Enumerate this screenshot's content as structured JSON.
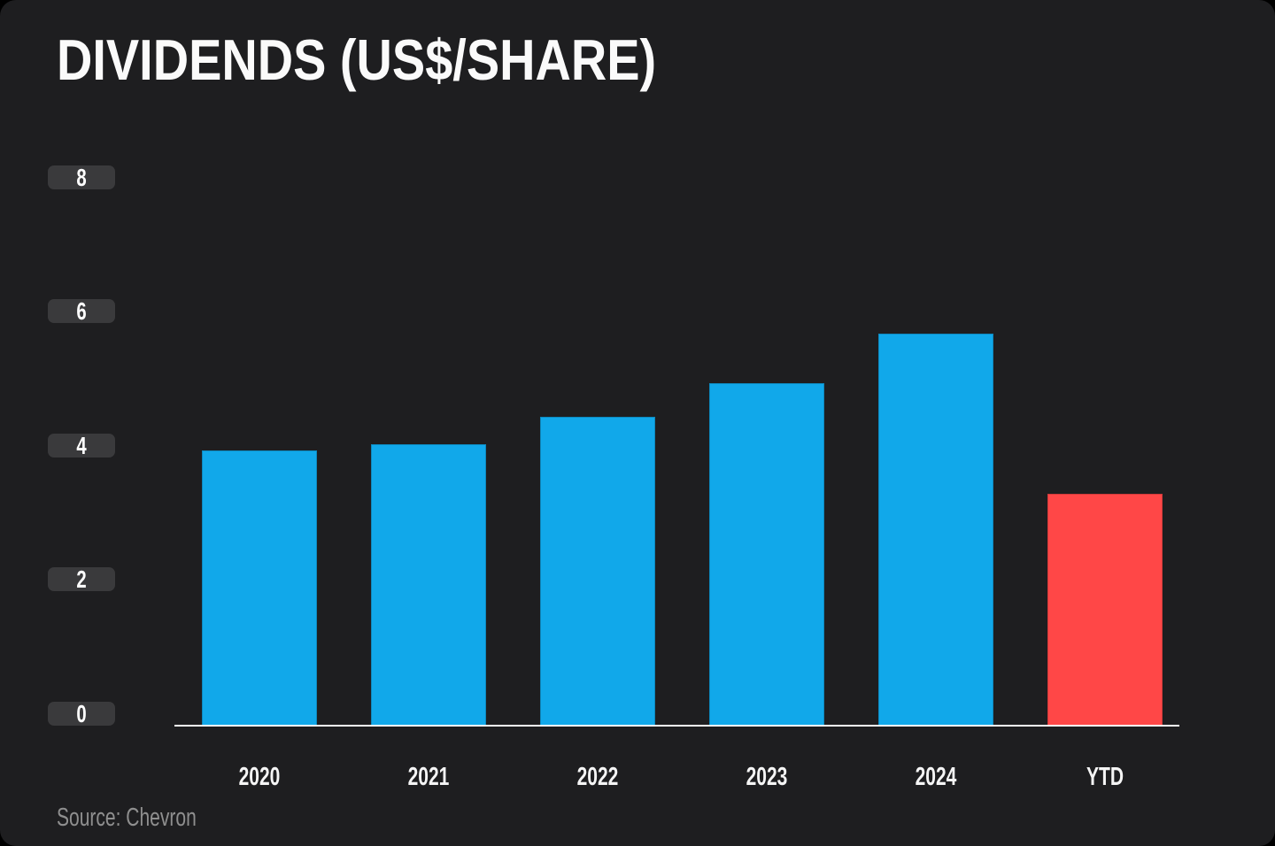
{
  "header": {
    "title": "DIVIDENDS (US$/SHARE)"
  },
  "footer": {
    "source": "Source: Chevron"
  },
  "colors": {
    "background": "#000000",
    "panel": "#1E1E20",
    "bar_blue": "#11A8EA",
    "bar_red": "#FF4747",
    "axis_line": "#FFFFFF",
    "tick_pill": "#3A3A3C",
    "text_primary": "#FFFFFF",
    "text_muted": "#8F8F8F"
  },
  "chart_data": {
    "type": "bar",
    "title": "DIVIDENDS (US$/SHARE)",
    "categories": [
      "2020",
      "2021",
      "2022",
      "2023",
      "2024",
      "YTD"
    ],
    "values": [
      4.1,
      4.2,
      4.6,
      5.1,
      5.85,
      3.45
    ],
    "bar_colors": [
      "#11A8EA",
      "#11A8EA",
      "#11A8EA",
      "#11A8EA",
      "#11A8EA",
      "#FF4747"
    ],
    "xlabel": "",
    "ylabel": "US$/share",
    "ylim": [
      0,
      8
    ],
    "yticks": [
      8,
      6,
      4,
      2,
      0
    ],
    "grid": false,
    "legend_position": "none",
    "source": "Source: Chevron"
  }
}
